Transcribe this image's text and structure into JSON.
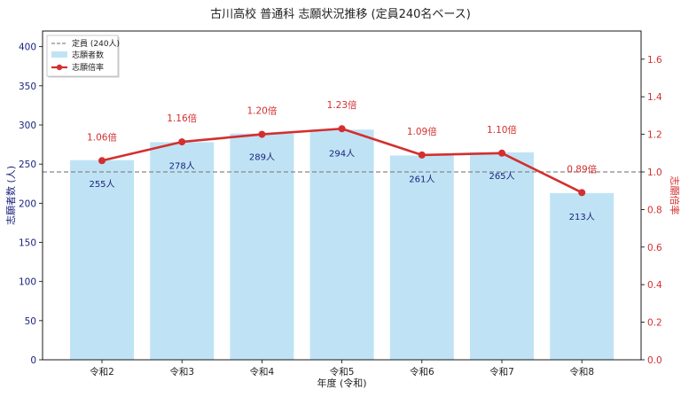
{
  "chart_data": {
    "type": "bar",
    "title": "古川高校 普通科 志願状況推移 (定員240名ベース)",
    "xlabel": "年度 (令和)",
    "ylabel_left": "志願者数 (人)",
    "ylabel_right": "志願倍率",
    "categories": [
      "令和2",
      "令和3",
      "令和4",
      "令和5",
      "令和6",
      "令和7",
      "令和8"
    ],
    "series": [
      {
        "name": "志願者数",
        "type": "bar",
        "axis": "left",
        "color": "#bfe3f5",
        "values": [
          255,
          278,
          289,
          294,
          261,
          265,
          213
        ],
        "labels": [
          "255人",
          "278人",
          "289人",
          "294人",
          "261人",
          "265人",
          "213人"
        ]
      },
      {
        "name": "志願倍率",
        "type": "line",
        "axis": "right",
        "color": "#d32f2f",
        "values": [
          1.06,
          1.16,
          1.2,
          1.23,
          1.09,
          1.1,
          0.89
        ],
        "labels": [
          "1.06倍",
          "1.16倍",
          "1.20倍",
          "1.23倍",
          "1.09倍",
          "1.10倍",
          "0.89倍"
        ]
      }
    ],
    "reference_line": {
      "name": "定員 (240人)",
      "value": 240,
      "axis": "left",
      "color": "#888888"
    },
    "ylim_left": [
      0,
      420
    ],
    "yticks_left": [
      0,
      50,
      100,
      150,
      200,
      250,
      300,
      350,
      400
    ],
    "ylim_right": [
      0,
      1.75
    ],
    "yticks_right": [
      "0.0",
      "0.2",
      "0.4",
      "0.6",
      "0.8",
      "1.0",
      "1.2",
      "1.4",
      "1.6"
    ],
    "legend_position": "top-left",
    "grid": false
  }
}
